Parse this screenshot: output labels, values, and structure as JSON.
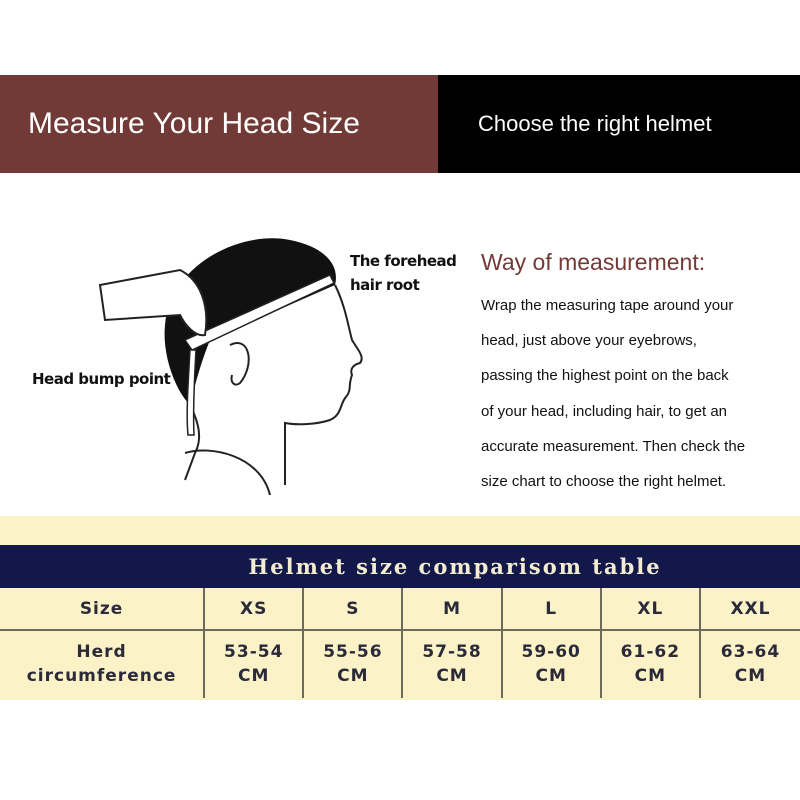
{
  "header": {
    "left_title": "Measure Your Head Size",
    "right_title": "Choose the right helmet",
    "colors": {
      "left": "#723a36",
      "right": "#000000"
    }
  },
  "illustration": {
    "label_forehead": [
      "The forehead",
      "hair root"
    ],
    "label_bump": "Head bump point"
  },
  "measurement": {
    "title": "Way of measurement:",
    "lines": [
      "Wrap the measuring tape around your",
      "head, just above your eyebrows,",
      "passing the highest point on the back",
      "of your head, including hair, to get an",
      "accurate measurement. Then check the",
      "size chart to choose the right helmet."
    ]
  },
  "size_table": {
    "title": "Helmet size comparisom table",
    "row_headers": [
      "Size",
      [
        "Herd",
        "circumference"
      ]
    ],
    "columns": [
      {
        "size": "XS",
        "range": "53-54",
        "unit": "CM"
      },
      {
        "size": "S",
        "range": "55-56",
        "unit": "CM"
      },
      {
        "size": "M",
        "range": "57-58",
        "unit": "CM"
      },
      {
        "size": "L",
        "range": "59-60",
        "unit": "CM"
      },
      {
        "size": "XL",
        "range": "61-62",
        "unit": "CM"
      },
      {
        "size": "XXL",
        "range": "63-64",
        "unit": "CM"
      }
    ],
    "colors": {
      "background": "#fbf2c8",
      "title_band": "#13184a"
    }
  }
}
